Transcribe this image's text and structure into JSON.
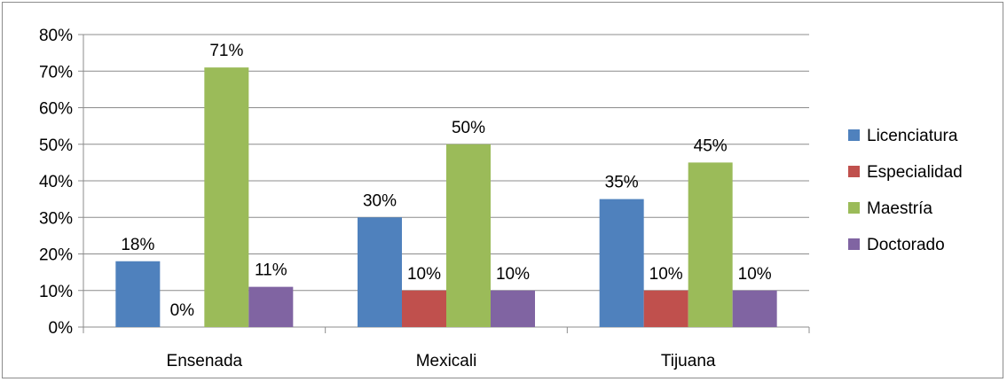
{
  "chart_data": {
    "type": "bar",
    "categories": [
      "Ensenada",
      "Mexicali",
      "Tijuana"
    ],
    "series": [
      {
        "name": "Licenciatura",
        "values": [
          18,
          30,
          35
        ],
        "labels": [
          "18%",
          "30%",
          "35%"
        ],
        "color": "#4f81bd"
      },
      {
        "name": "Especialidad",
        "values": [
          0,
          10,
          10
        ],
        "labels": [
          "0%",
          "10%",
          "10%"
        ],
        "color": "#c0504d"
      },
      {
        "name": "Maestría",
        "values": [
          71,
          50,
          45
        ],
        "labels": [
          "71%",
          "50%",
          "45%"
        ],
        "color": "#9bbb59"
      },
      {
        "name": "Doctorado",
        "values": [
          11,
          10,
          10
        ],
        "labels": [
          "11%",
          "10%",
          "10%"
        ],
        "color": "#8064a2"
      }
    ],
    "yticks": [
      "0%",
      "10%",
      "20%",
      "30%",
      "40%",
      "50%",
      "60%",
      "70%",
      "80%"
    ],
    "ylim": [
      0,
      80
    ],
    "grid": true,
    "legend": "right"
  }
}
